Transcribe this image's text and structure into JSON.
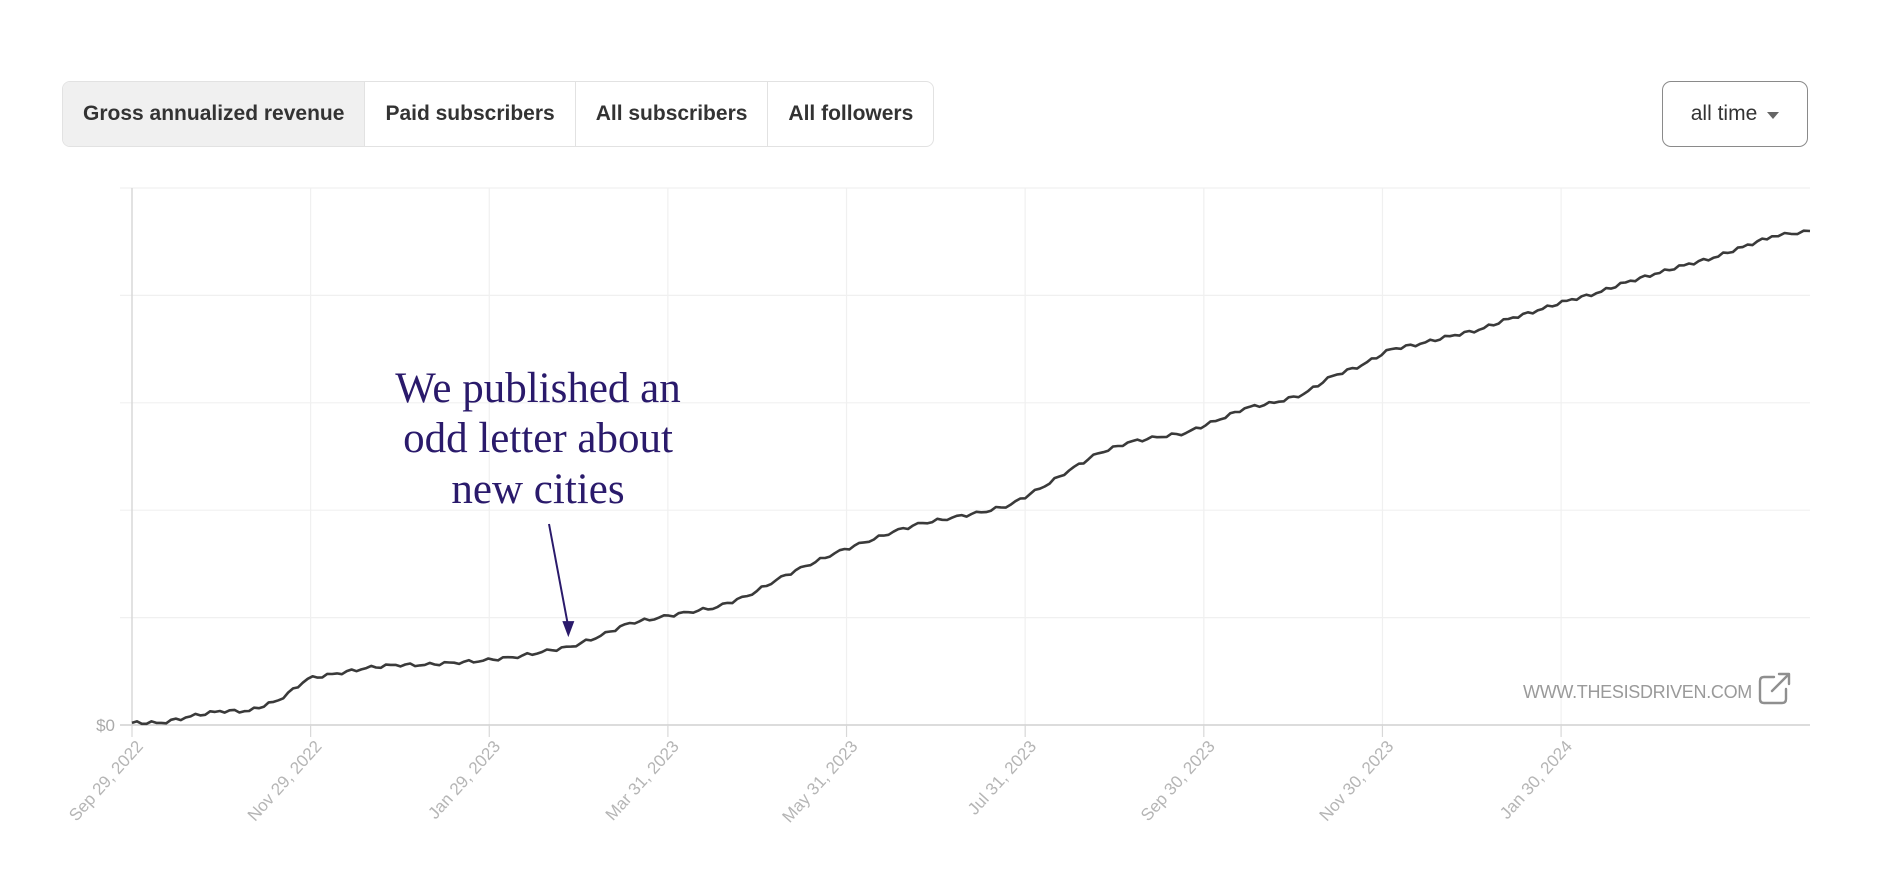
{
  "tabs": [
    {
      "label": "Gross annualized revenue",
      "active": true
    },
    {
      "label": "Paid subscribers",
      "active": false
    },
    {
      "label": "All subscribers",
      "active": false
    },
    {
      "label": "All followers",
      "active": false
    }
  ],
  "range_select": {
    "value": "all time",
    "icon": "caret-down-icon"
  },
  "annotation": {
    "lines": [
      "We published an",
      "odd letter about",
      "new cities"
    ],
    "color": "#2a1a6b",
    "target_date": "Feb 25, 2023"
  },
  "watermark": {
    "text": "WWW.THESISDRIVEN.COM",
    "icon": "external-link-icon"
  },
  "chart_data": {
    "type": "line",
    "title": "",
    "y_tick_labels": [
      "$0"
    ],
    "ylim": [
      0,
      5
    ],
    "grid": true,
    "x_tick_labels": [
      "Sep 29, 2022",
      "Nov 29, 2022",
      "Jan 29, 2023",
      "Mar 31, 2023",
      "May 31, 2023",
      "Jul 31, 2023",
      "Sep 30, 2023",
      "Nov 30, 2023",
      "Jan 30, 2024"
    ],
    "x_range": [
      "Sep 29, 2022",
      "Apr 24, 2024"
    ],
    "line_color": "#3a3a3a",
    "series": [
      {
        "x": [
          "Sep 29, 2022",
          "Oct 9, 2022",
          "Oct 19, 2022",
          "Oct 29, 2022",
          "Nov 8, 2022",
          "Nov 18, 2022",
          "Nov 28, 2022",
          "Dec 8, 2022",
          "Dec 18, 2022",
          "Dec 28, 2022",
          "Jan 7, 2023",
          "Jan 17, 2023",
          "Jan 27, 2023",
          "Feb 6, 2023",
          "Feb 16, 2023",
          "Feb 26, 2023",
          "Mar 8, 2023",
          "Mar 18, 2023",
          "Mar 28, 2023",
          "Apr 7, 2023",
          "Apr 17, 2023",
          "Apr 27, 2023",
          "May 7, 2023",
          "May 17, 2023",
          "May 27, 2023",
          "Jun 6, 2023",
          "Jun 16, 2023",
          "Jun 26, 2023",
          "Jul 6, 2023",
          "Jul 16, 2023",
          "Jul 26, 2023",
          "Aug 5, 2023",
          "Aug 15, 2023",
          "Aug 25, 2023",
          "Sep 4, 2023",
          "Sep 14, 2023",
          "Sep 24, 2023",
          "Oct 4, 2023",
          "Oct 14, 2023",
          "Oct 24, 2023",
          "Nov 3, 2023",
          "Nov 13, 2023",
          "Nov 23, 2023",
          "Dec 3, 2023",
          "Dec 13, 2023",
          "Dec 23, 2023",
          "Jan 2, 2024",
          "Jan 12, 2024",
          "Jan 22, 2024",
          "Feb 1, 2024",
          "Feb 11, 2024",
          "Feb 21, 2024",
          "Mar 2, 2024",
          "Mar 12, 2024",
          "Mar 22, 2024",
          "Apr 1, 2024",
          "Apr 11, 2024",
          "Apr 24, 2024"
        ],
        "values": [
          0.02,
          0.02,
          0.08,
          0.13,
          0.13,
          0.23,
          0.43,
          0.48,
          0.53,
          0.56,
          0.56,
          0.58,
          0.6,
          0.63,
          0.68,
          0.73,
          0.83,
          0.95,
          1.0,
          1.05,
          1.1,
          1.2,
          1.35,
          1.48,
          1.6,
          1.7,
          1.8,
          1.88,
          1.93,
          1.98,
          2.05,
          2.2,
          2.37,
          2.53,
          2.63,
          2.68,
          2.72,
          2.83,
          2.95,
          3.0,
          3.08,
          3.25,
          3.35,
          3.5,
          3.55,
          3.62,
          3.68,
          3.78,
          3.86,
          3.95,
          4.02,
          4.12,
          4.2,
          4.28,
          4.35,
          4.45,
          4.55,
          4.6
        ]
      }
    ]
  }
}
